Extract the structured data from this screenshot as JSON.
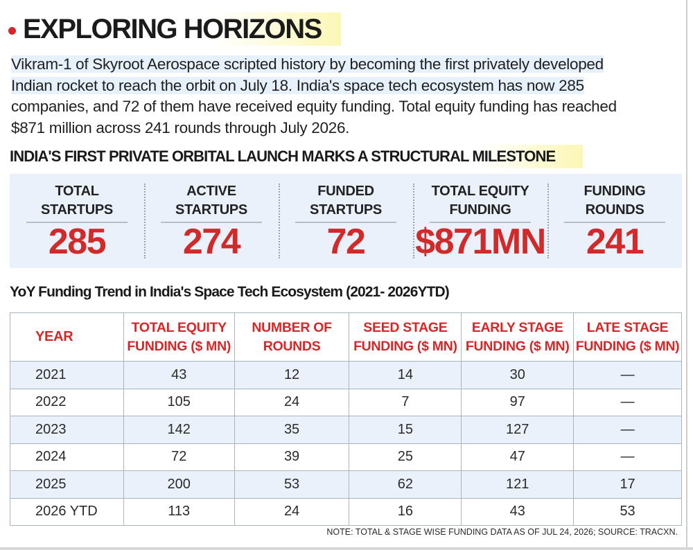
{
  "header": {
    "title": "EXPLORING HORIZONS"
  },
  "intro": {
    "lines": [
      "Vikram-1 of Skyroot Aerospace scripted history by becoming the first privately developed",
      "Indian rocket to reach the orbit on July 18. India's space tech ecosystem has now 285",
      "companies, and 72 of them have received equity funding. Total equity funding has reached",
      "$871 million across 241 rounds through July 2026."
    ]
  },
  "subheading": "INDIA'S FIRST PRIVATE ORBITAL LAUNCH MARKS A STRUCTURAL MILESTONE",
  "stats": [
    {
      "label_1": "TOTAL",
      "label_2": "STARTUPS",
      "value": "285"
    },
    {
      "label_1": "ACTIVE",
      "label_2": "STARTUPS",
      "value": "274"
    },
    {
      "label_1": "FUNDED",
      "label_2": "STARTUPS",
      "value": "72"
    },
    {
      "label_1": "TOTAL EQUITY",
      "label_2": "FUNDING",
      "value": "$871MN"
    },
    {
      "label_1": "FUNDING",
      "label_2": "ROUNDS",
      "value": "241"
    }
  ],
  "table": {
    "title": "YoY Funding Trend in India's Space Tech Ecosystem (2021- 2026YTD)",
    "headers": [
      {
        "l1": "YEAR",
        "l2": ""
      },
      {
        "l1": "TOTAL EQUITY",
        "l2": "FUNDING ($ MN)"
      },
      {
        "l1": "NUMBER OF",
        "l2": "ROUNDS"
      },
      {
        "l1": "SEED STAGE",
        "l2": "FUNDING ($ MN)"
      },
      {
        "l1": "EARLY STAGE",
        "l2": "FUNDING ($ MN)"
      },
      {
        "l1": "LATE STAGE",
        "l2": "FUNDING ($ MN)"
      }
    ],
    "rows": [
      [
        "2021",
        "43",
        "12",
        "14",
        "30",
        "—"
      ],
      [
        "2022",
        "105",
        "24",
        "7",
        "97",
        "—"
      ],
      [
        "2023",
        "142",
        "35",
        "15",
        "127",
        "—"
      ],
      [
        "2024",
        "72",
        "39",
        "25",
        "47",
        "—"
      ],
      [
        "2025",
        "200",
        "53",
        "62",
        "121",
        "17"
      ],
      [
        "2026 YTD",
        "113",
        "24",
        "16",
        "43",
        "53"
      ]
    ]
  },
  "note": "NOTE: TOTAL & STAGE WISE FUNDING DATA AS OF JUL 24, 2026; SOURCE: TRACXN."
}
